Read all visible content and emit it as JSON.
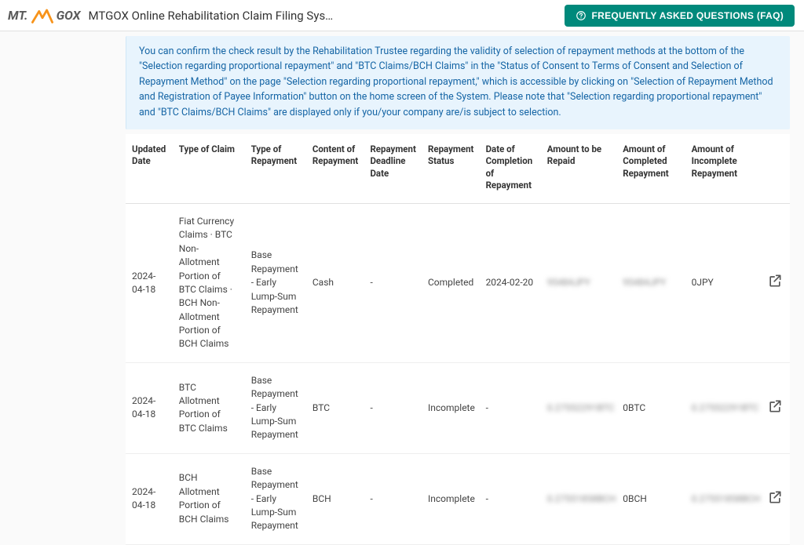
{
  "header": {
    "logo_text_1": "MT.",
    "logo_text_2": "GOX",
    "app_title": "MTGOX Online Rehabilitation Claim Filing Sys…",
    "faq_label": "FREQUENTLY ASKED QUESTIONS (FAQ)"
  },
  "notice": {
    "text": "You can confirm the check result by the Rehabilitation Trustee regarding the validity of selection of repayment methods at the bottom of the \"Selection regarding proportional repayment\" and \"BTC Claims/BCH Claims\" in the \"Status of Consent to Terms of Consent and Selection of Repayment Method\" on the page \"Selection regarding proportional repayment,\" which is accessible by clicking on \"Selection of Repayment Method and Registration of Payee Information\" button on the home screen of the System. Please note that \"Selection regarding proportional repayment\" and \"BTC Claims/BCH Claims\" are displayed only if you/your company are/is subject to selection."
  },
  "table": {
    "headers": {
      "updated_date": "Updated Date",
      "type_of_claim": "Type of Claim",
      "type_of_repayment": "Type of Repayment",
      "content_of_repayment": "Content of Repayment",
      "repayment_deadline": "Repayment Deadline Date",
      "repayment_status": "Repayment Status",
      "completion_date": "Date of Completion of Repayment",
      "amount_repaid": "Amount to be Repaid",
      "amount_completed": "Amount of Completed Repayment",
      "amount_incomplete": "Amount of Incomplete Repayment"
    },
    "rows": [
      {
        "updated_date": "2024-04-18",
        "type_of_claim": "Fiat Currency Claims · BTC Non-Allotment Portion of BTC Claims · BCH Non-Allotment Portion of BCH Claims",
        "type_of_repayment": "Base Repayment - Early Lump-Sum Repayment",
        "content_of_repayment": "Cash",
        "repayment_deadline": "-",
        "repayment_status": "Completed",
        "completion_date": "2024-02-20",
        "amount_repaid": "95484JPY",
        "amount_repaid_blur": true,
        "amount_completed": "95484JPY",
        "amount_completed_blur": true,
        "amount_incomplete": "0JPY",
        "amount_incomplete_blur": false
      },
      {
        "updated_date": "2024-04-18",
        "type_of_claim": "BTC Allotment Portion of BTC Claims",
        "type_of_repayment": "Base Repayment - Early Lump-Sum Repayment",
        "content_of_repayment": "BTC",
        "repayment_deadline": "-",
        "repayment_status": "Incomplete",
        "completion_date": "-",
        "amount_repaid": "0.27552291BTC",
        "amount_repaid_blur": true,
        "amount_completed": "0BTC",
        "amount_completed_blur": false,
        "amount_incomplete": "0.27552291BTC",
        "amount_incomplete_blur": true
      },
      {
        "updated_date": "2024-04-18",
        "type_of_claim": "BCH Allotment Portion of BCH Claims",
        "type_of_repayment": "Base Repayment - Early Lump-Sum Repayment",
        "content_of_repayment": "BCH",
        "repayment_deadline": "-",
        "repayment_status": "Incomplete",
        "completion_date": "-",
        "amount_repaid": "0.27551858BCH",
        "amount_repaid_blur": true,
        "amount_completed": "0BCH",
        "amount_completed_blur": false,
        "amount_incomplete": "0.27551858BCH",
        "amount_incomplete_blur": true
      }
    ]
  },
  "colors": {
    "accent": "#00897b",
    "notice_bg": "#e8f4fd",
    "notice_text": "#1565a5",
    "logo_orange": "#f7931a"
  }
}
